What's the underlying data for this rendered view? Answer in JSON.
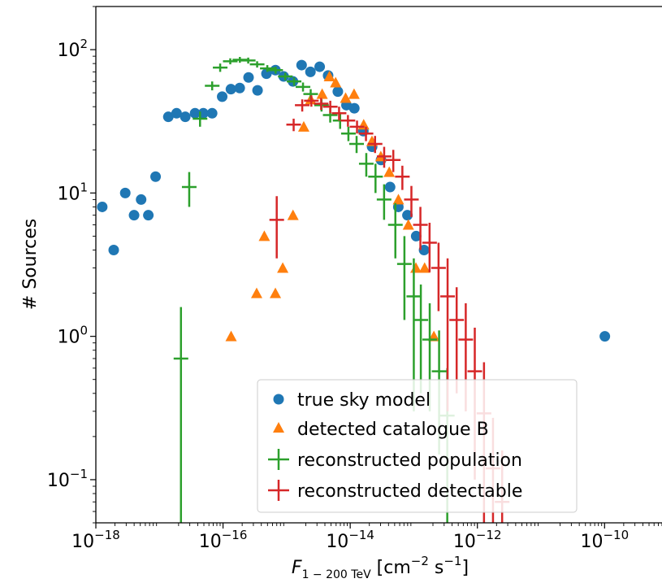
{
  "chart_data": {
    "type": "scatter",
    "xscale": "log",
    "yscale": "log",
    "xlim": [
      1e-18,
      8e-10
    ],
    "ylim": [
      0.05,
      200
    ],
    "xlabel": "F",
    "xlabel_sub": "1 − 200 TeV",
    "xlabel_unit": " [cm",
    "xlabel_unit_exp1": "−2",
    "xlabel_unit_mid": " s",
    "xlabel_unit_exp2": "−1",
    "xlabel_unit_end": "]",
    "ylabel": "# Sources",
    "x_ticks": [
      {
        "value": 1e-18,
        "base": "10",
        "exp": "−18"
      },
      {
        "value": 1e-16,
        "base": "10",
        "exp": "−16"
      },
      {
        "value": 1e-14,
        "base": "10",
        "exp": "−14"
      },
      {
        "value": 1e-12,
        "base": "10",
        "exp": "−12"
      },
      {
        "value": 1e-10,
        "base": "10",
        "exp": "−10"
      }
    ],
    "y_ticks": [
      {
        "value": 0.1,
        "base": "10",
        "exp": "−1"
      },
      {
        "value": 1,
        "base": "10",
        "exp": "0"
      },
      {
        "value": 10,
        "base": "10",
        "exp": "1"
      },
      {
        "value": 100,
        "base": "10",
        "exp": "2"
      }
    ],
    "legend_position": "lower-center",
    "series": [
      {
        "name": "true sky model",
        "marker": "circle",
        "color": "#1f77b4",
        "points": [
          [
            1.26e-18,
            8
          ],
          [
            1.91e-18,
            4
          ],
          [
            2.9e-18,
            10
          ],
          [
            3.99e-18,
            7
          ],
          [
            5.15e-18,
            9
          ],
          [
            6.69e-18,
            7
          ],
          [
            8.7e-18,
            13
          ],
          [
            1.38e-17,
            34
          ],
          [
            1.86e-17,
            36
          ],
          [
            2.55e-17,
            34
          ],
          [
            3.63e-17,
            36
          ],
          [
            4.9e-17,
            36
          ],
          [
            6.74e-17,
            36
          ],
          [
            9.7e-17,
            47
          ],
          [
            1.33e-16,
            53
          ],
          [
            1.83e-16,
            54
          ],
          [
            2.52e-16,
            64
          ],
          [
            3.49e-16,
            52
          ],
          [
            4.82e-16,
            68
          ],
          [
            6.68e-16,
            72
          ],
          [
            9e-16,
            65
          ],
          [
            1.26e-15,
            60
          ],
          [
            1.72e-15,
            78
          ],
          [
            2.37e-15,
            70
          ],
          [
            3.31e-15,
            76
          ],
          [
            4.49e-15,
            66
          ],
          [
            6.39e-15,
            51
          ],
          [
            8.73e-15,
            41
          ],
          [
            1.16e-14,
            39
          ],
          [
            1.61e-14,
            27
          ],
          [
            2.21e-14,
            21
          ],
          [
            3.05e-14,
            17
          ],
          [
            4.24e-14,
            11
          ],
          [
            5.71e-14,
            8
          ],
          [
            7.94e-14,
            7
          ],
          [
            1.09e-13,
            5
          ],
          [
            1.45e-13,
            4
          ],
          [
            1.01e-10,
            1
          ]
        ]
      },
      {
        "name": "detected catalogue B",
        "marker": "triangle",
        "color": "#ff7f0e",
        "points": [
          [
            1.34e-16,
            1
          ],
          [
            3.38e-16,
            2
          ],
          [
            4.46e-16,
            5
          ],
          [
            6.66e-16,
            2
          ],
          [
            8.69e-16,
            3
          ],
          [
            1.26e-15,
            7
          ],
          [
            1.86e-15,
            29
          ],
          [
            2.39e-15,
            45
          ],
          [
            3.62e-15,
            49
          ],
          [
            4.71e-15,
            65
          ],
          [
            5.9e-15,
            59
          ],
          [
            8.47e-15,
            46
          ],
          [
            1.15e-14,
            49
          ],
          [
            1.63e-14,
            30
          ],
          [
            2.2e-14,
            23
          ],
          [
            3.03e-14,
            18
          ],
          [
            4.11e-14,
            14
          ],
          [
            5.73e-14,
            9
          ],
          [
            8.21e-14,
            6
          ],
          [
            1.08e-13,
            3
          ],
          [
            1.48e-13,
            3
          ],
          [
            2.07e-13,
            1
          ]
        ]
      },
      {
        "name": "reconstructed population",
        "marker": "cross",
        "color": "#2ca02c",
        "points": [
          [
            2.18e-17,
            0.7,
            0.05,
            1.6
          ],
          [
            2.94e-17,
            11,
            8,
            14
          ],
          [
            4.35e-17,
            33,
            29,
            37
          ],
          [
            6.75e-17,
            56,
            52,
            60
          ],
          [
            9.02e-17,
            75,
            70,
            80
          ],
          [
            1.3e-16,
            83,
            79,
            87
          ],
          [
            1.84e-16,
            85,
            81,
            89
          ],
          [
            2.49e-16,
            84,
            80,
            88
          ],
          [
            3.44e-16,
            79,
            75,
            83
          ],
          [
            4.97e-16,
            74,
            70,
            78
          ],
          [
            6.72e-16,
            72,
            68,
            76
          ],
          [
            9.53e-16,
            65,
            61,
            69
          ],
          [
            1.31e-15,
            60,
            56,
            64
          ],
          [
            1.81e-15,
            55,
            51,
            59
          ],
          [
            2.39e-15,
            49,
            45,
            53
          ],
          [
            3.54e-15,
            41,
            37,
            45
          ],
          [
            4.85e-15,
            35,
            31,
            39
          ],
          [
            6.94e-15,
            32,
            28,
            36
          ],
          [
            9.37e-15,
            26,
            23,
            29
          ],
          [
            1.26e-14,
            22,
            19,
            25
          ],
          [
            1.79e-14,
            16,
            13,
            19
          ],
          [
            2.5e-14,
            13,
            10,
            16
          ],
          [
            3.41e-14,
            9,
            6.5,
            11.5
          ],
          [
            5.13e-14,
            6,
            3.5,
            8.5
          ],
          [
            7.12e-14,
            3.2,
            1.3,
            5
          ],
          [
            1e-13,
            1.9,
            0.3,
            3.5
          ],
          [
            1.29e-13,
            1.3,
            0.4,
            2.3
          ],
          [
            1.78e-13,
            0.95,
            0.3,
            1.7
          ],
          [
            2.5e-13,
            0.57,
            0.15,
            1.1
          ],
          [
            3.36e-13,
            0.28,
            0.05,
            0.6
          ]
        ]
      },
      {
        "name": "reconstructed detectable",
        "marker": "cross",
        "color": "#d62728",
        "points": [
          [
            6.99e-16,
            6.5,
            3.5,
            9.5
          ],
          [
            1.29e-15,
            30,
            27,
            33
          ],
          [
            1.76e-15,
            41,
            37,
            45
          ],
          [
            2.45e-15,
            44,
            40,
            48
          ],
          [
            3.49e-15,
            42,
            38,
            46
          ],
          [
            4.86e-15,
            40,
            36,
            44
          ],
          [
            6.68e-15,
            36,
            32,
            40
          ],
          [
            9.21e-15,
            32,
            29,
            35
          ],
          [
            1.28e-14,
            29,
            26,
            32
          ],
          [
            1.77e-14,
            26,
            23,
            29
          ],
          [
            2.46e-14,
            22,
            19,
            25
          ],
          [
            3.42e-14,
            18,
            15,
            21
          ],
          [
            4.76e-14,
            17,
            14,
            20
          ],
          [
            6.61e-14,
            13,
            10.5,
            15.5
          ],
          [
            9.17e-14,
            9,
            6.8,
            11.2
          ],
          [
            1.27e-13,
            6,
            4,
            8
          ],
          [
            1.77e-13,
            4.5,
            2.8,
            6.2
          ],
          [
            2.45e-13,
            3,
            1.5,
            4.5
          ],
          [
            3.4e-13,
            1.9,
            0.3,
            3.5
          ],
          [
            4.72e-13,
            1.3,
            0.4,
            2.2
          ],
          [
            6.56e-13,
            0.95,
            0.3,
            1.7
          ],
          [
            9.1e-13,
            0.57,
            0.1,
            1.15
          ],
          [
            1.27e-12,
            0.29,
            0.05,
            0.66
          ],
          [
            1.76e-12,
            0.12,
            0.05,
            0.27
          ],
          [
            2.45e-12,
            0.07,
            0.05,
            0.16
          ]
        ]
      }
    ]
  }
}
